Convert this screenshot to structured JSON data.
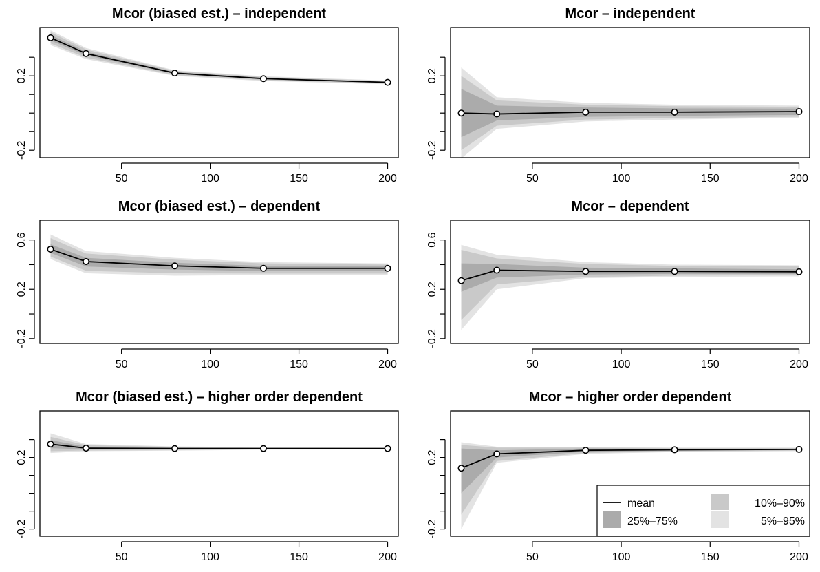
{
  "chart_data": [
    {
      "type": "line",
      "title": "Mcor (biased est.) – independent",
      "xlabel": "",
      "ylabel": "",
      "xlim": [
        4,
        206
      ],
      "ylim": [
        -0.24,
        0.46
      ],
      "xticks": [
        50,
        100,
        150,
        200
      ],
      "xtick_labels": [
        "50",
        "100",
        "150",
        "200"
      ],
      "yticks": [
        -0.2,
        -0.1,
        0.0,
        0.1,
        0.2,
        0.3
      ],
      "ytick_labels": [
        "-0.2",
        "",
        "",
        "",
        "0.2",
        ""
      ],
      "x": [
        10,
        30,
        80,
        130,
        200
      ],
      "mean": [
        0.405,
        0.32,
        0.215,
        0.185,
        0.165
      ],
      "bands": {
        "q05": [
          0.365,
          0.29,
          0.2,
          0.172,
          0.155
        ],
        "q95": [
          0.445,
          0.35,
          0.23,
          0.198,
          0.175
        ],
        "q10": [
          0.375,
          0.298,
          0.204,
          0.176,
          0.158
        ],
        "q90": [
          0.435,
          0.342,
          0.226,
          0.194,
          0.172
        ],
        "q25": [
          0.39,
          0.31,
          0.21,
          0.181,
          0.162
        ],
        "q75": [
          0.42,
          0.33,
          0.22,
          0.189,
          0.168
        ]
      },
      "grid": false
    },
    {
      "type": "line",
      "title": "Mcor – independent",
      "xlabel": "",
      "ylabel": "",
      "xlim": [
        4,
        206
      ],
      "ylim": [
        -0.24,
        0.46
      ],
      "xticks": [
        50,
        100,
        150,
        200
      ],
      "xtick_labels": [
        "50",
        "100",
        "150",
        "200"
      ],
      "yticks": [
        -0.2,
        -0.1,
        0.0,
        0.1,
        0.2,
        0.3
      ],
      "ytick_labels": [
        "-0.2",
        "",
        "",
        "",
        "0.2",
        ""
      ],
      "x": [
        10,
        30,
        80,
        130,
        200
      ],
      "mean": [
        0.0,
        -0.005,
        0.005,
        0.005,
        0.008
      ],
      "bands": {
        "q05": [
          -0.245,
          -0.085,
          -0.045,
          -0.035,
          -0.025
        ],
        "q95": [
          0.245,
          0.085,
          0.055,
          0.045,
          0.04
        ],
        "q10": [
          -0.2,
          -0.068,
          -0.035,
          -0.027,
          -0.02
        ],
        "q90": [
          0.2,
          0.068,
          0.045,
          0.037,
          0.034
        ],
        "q25": [
          -0.13,
          -0.04,
          -0.02,
          -0.015,
          -0.01
        ],
        "q75": [
          0.13,
          0.04,
          0.03,
          0.025,
          0.024
        ]
      },
      "grid": false
    },
    {
      "type": "line",
      "title": "Mcor (biased est.) – dependent",
      "xlabel": "",
      "ylabel": "",
      "xlim": [
        4,
        206
      ],
      "ylim": [
        -0.24,
        0.76
      ],
      "xticks": [
        50,
        100,
        150,
        200
      ],
      "xtick_labels": [
        "50",
        "100",
        "150",
        "200"
      ],
      "yticks": [
        -0.2,
        0.0,
        0.2,
        0.4,
        0.6
      ],
      "ytick_labels": [
        "-0.2",
        "",
        "0.2",
        "",
        "0.6"
      ],
      "x": [
        10,
        30,
        80,
        130,
        200
      ],
      "mean": [
        0.525,
        0.425,
        0.39,
        0.37,
        0.37
      ],
      "bands": {
        "q05": [
          0.445,
          0.33,
          0.31,
          0.315,
          0.315
        ],
        "q95": [
          0.645,
          0.51,
          0.455,
          0.42,
          0.41
        ],
        "q10": [
          0.465,
          0.35,
          0.33,
          0.328,
          0.328
        ],
        "q90": [
          0.615,
          0.49,
          0.44,
          0.41,
          0.4
        ],
        "q25": [
          0.495,
          0.385,
          0.36,
          0.348,
          0.348
        ],
        "q75": [
          0.565,
          0.455,
          0.415,
          0.39,
          0.388
        ]
      },
      "grid": false
    },
    {
      "type": "line",
      "title": "Mcor – dependent",
      "xlabel": "",
      "ylabel": "",
      "xlim": [
        4,
        206
      ],
      "ylim": [
        -0.24,
        0.76
      ],
      "xticks": [
        50,
        100,
        150,
        200
      ],
      "xtick_labels": [
        "50",
        "100",
        "150",
        "200"
      ],
      "yticks": [
        -0.2,
        0.0,
        0.2,
        0.4,
        0.6
      ],
      "ytick_labels": [
        "-0.2",
        "",
        "0.2",
        "",
        "0.6"
      ],
      "x": [
        10,
        30,
        80,
        130,
        200
      ],
      "mean": [
        0.27,
        0.355,
        0.345,
        0.345,
        0.342
      ],
      "bands": {
        "q05": [
          -0.13,
          0.2,
          0.29,
          0.3,
          0.305
        ],
        "q95": [
          0.56,
          0.48,
          0.42,
          0.4,
          0.395
        ],
        "q10": [
          -0.05,
          0.24,
          0.3,
          0.31,
          0.315
        ],
        "q90": [
          0.52,
          0.45,
          0.405,
          0.39,
          0.385
        ],
        "q25": [
          0.18,
          0.295,
          0.32,
          0.325,
          0.325
        ],
        "q75": [
          0.41,
          0.405,
          0.375,
          0.37,
          0.362
        ]
      },
      "grid": false
    },
    {
      "type": "line",
      "title": "Mcor (biased est.) – higher order dependent",
      "xlabel": "",
      "ylabel": "",
      "xlim": [
        4,
        206
      ],
      "ylim": [
        -0.24,
        0.46
      ],
      "xticks": [
        50,
        100,
        150,
        200
      ],
      "xtick_labels": [
        "50",
        "100",
        "150",
        "200"
      ],
      "yticks": [
        -0.2,
        -0.1,
        0.0,
        0.1,
        0.2,
        0.3
      ],
      "ytick_labels": [
        "-0.2",
        "",
        "",
        "",
        "0.2",
        ""
      ],
      "x": [
        10,
        30,
        80,
        130,
        200
      ],
      "mean": [
        0.275,
        0.252,
        0.25,
        0.25,
        0.25
      ],
      "bands": {
        "q05": [
          0.225,
          0.235,
          0.238,
          0.243,
          0.245
        ],
        "q95": [
          0.335,
          0.275,
          0.262,
          0.257,
          0.255
        ],
        "q10": [
          0.235,
          0.239,
          0.241,
          0.245,
          0.246
        ],
        "q90": [
          0.315,
          0.269,
          0.259,
          0.255,
          0.254
        ],
        "q25": [
          0.252,
          0.245,
          0.245,
          0.247,
          0.248
        ],
        "q75": [
          0.297,
          0.26,
          0.255,
          0.253,
          0.252
        ]
      },
      "grid": false
    },
    {
      "type": "line",
      "title": "Mcor – higher order dependent",
      "xlabel": "",
      "ylabel": "",
      "xlim": [
        4,
        206
      ],
      "ylim": [
        -0.24,
        0.46
      ],
      "xticks": [
        50,
        100,
        150,
        200
      ],
      "xtick_labels": [
        "50",
        "100",
        "150",
        "200"
      ],
      "yticks": [
        -0.2,
        -0.1,
        0.0,
        0.1,
        0.2,
        0.3
      ],
      "ytick_labels": [
        "-0.2",
        "",
        "",
        "",
        "0.2",
        ""
      ],
      "x": [
        10,
        30,
        80,
        130,
        200
      ],
      "mean": [
        0.14,
        0.22,
        0.24,
        0.243,
        0.245
      ],
      "bands": {
        "q05": [
          -0.2,
          0.17,
          0.22,
          0.23,
          0.235
        ],
        "q95": [
          0.285,
          0.26,
          0.26,
          0.255,
          0.255
        ],
        "q10": [
          -0.12,
          0.18,
          0.225,
          0.234,
          0.238
        ],
        "q90": [
          0.27,
          0.255,
          0.255,
          0.252,
          0.252
        ],
        "q25": [
          0.0,
          0.2,
          0.232,
          0.238,
          0.241
        ],
        "q75": [
          0.25,
          0.24,
          0.25,
          0.248,
          0.249
        ]
      },
      "grid": false,
      "legend": {
        "placement": "bottom-right",
        "entries": [
          {
            "kind": "line",
            "label": "mean"
          },
          {
            "kind": "swatch",
            "label": "10%–90%",
            "color": "#c9c9c9"
          },
          {
            "kind": "swatch",
            "label": "25%–75%",
            "color": "#ababab"
          },
          {
            "kind": "swatch",
            "label": "5%–95%",
            "color": "#e3e3e3"
          }
        ]
      }
    }
  ],
  "colors": {
    "band_05_95": "#e3e3e3",
    "band_10_90": "#c9c9c9",
    "band_25_75": "#ababab",
    "mean_line": "#000000"
  }
}
